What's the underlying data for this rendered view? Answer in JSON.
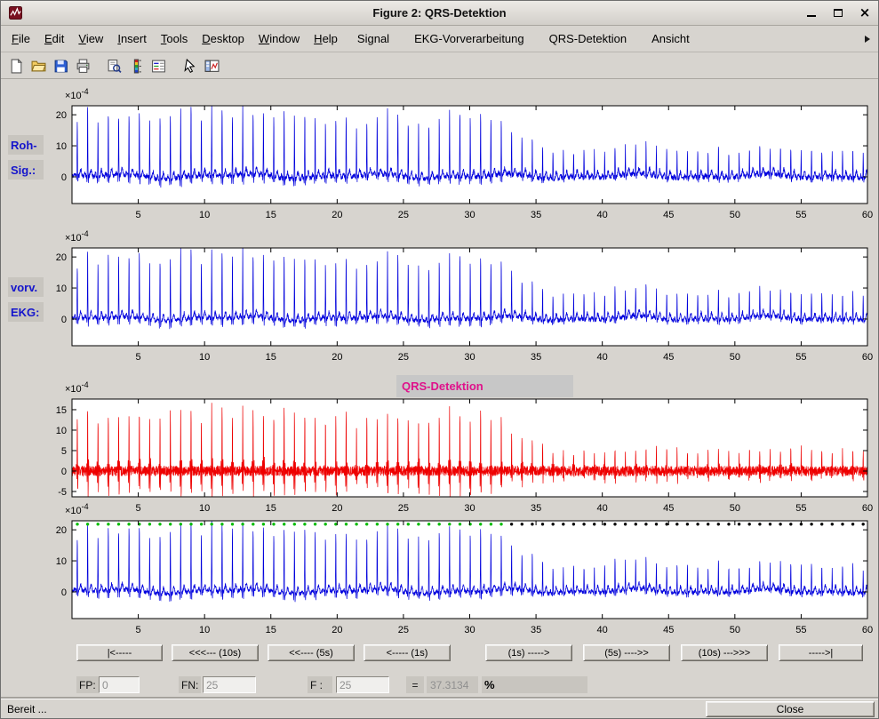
{
  "window": {
    "title": "Figure 2: QRS-Detektion",
    "close_glyph": "×"
  },
  "menu": {
    "items": [
      {
        "label": "File",
        "underline": 0,
        "custom": false
      },
      {
        "label": "Edit",
        "underline": 0,
        "custom": false
      },
      {
        "label": "View",
        "underline": 0,
        "custom": false
      },
      {
        "label": "Insert",
        "underline": 0,
        "custom": false
      },
      {
        "label": "Tools",
        "underline": 0,
        "custom": false
      },
      {
        "label": "Desktop",
        "underline": 0,
        "custom": false
      },
      {
        "label": "Window",
        "underline": 0,
        "custom": false
      },
      {
        "label": "Help",
        "underline": 0,
        "custom": false
      },
      {
        "label": "Signal",
        "underline": -1,
        "custom": true
      },
      {
        "label": "EKG-Vorverarbeitung",
        "underline": -1,
        "custom": true
      },
      {
        "label": "QRS-Detektion",
        "underline": -1,
        "custom": true
      },
      {
        "label": "Ansicht",
        "underline": -1,
        "custom": true
      }
    ]
  },
  "toolbar": {
    "buttons": [
      {
        "name": "new-figure",
        "icon": "new-document-icon"
      },
      {
        "name": "open-file",
        "icon": "open-folder-icon"
      },
      {
        "name": "save-figure",
        "icon": "save-floppy-icon"
      },
      {
        "name": "print-figure",
        "icon": "printer-icon"
      },
      {
        "separator": true
      },
      {
        "name": "print-preview",
        "icon": "print-preview-icon"
      },
      {
        "name": "insert-colorbar",
        "icon": "colorbar-icon"
      },
      {
        "name": "insert-legend",
        "icon": "legend-icon"
      },
      {
        "separator": true
      },
      {
        "name": "edit-plot",
        "icon": "pointer-arrow-icon"
      },
      {
        "name": "plot-tools",
        "icon": "plot-tools-icon"
      }
    ]
  },
  "axis_labels": {
    "plot1": [
      "Roh-",
      "Sig.:"
    ],
    "plot2": [
      "vorv.",
      "EKG:"
    ]
  },
  "nav": {
    "buttons": [
      "|<-----",
      "<<<--- (10s)",
      "<<---- (5s)",
      "<----- (1s)",
      "(1s) ----->",
      "(5s) ---->>",
      "(10s) --->>>",
      "----->|"
    ]
  },
  "stats": {
    "fp_label": "FP:",
    "fp_value": "0",
    "fn_label": "FN:",
    "fn_value": "25",
    "f_label": "F :",
    "f_value": "25",
    "equals_sign": "=",
    "f_measure_value": "37.3134",
    "percent_label": "%"
  },
  "statusbar": {
    "status_text": "Bereit ...",
    "close_button_label": "Close"
  },
  "colors": {
    "window_chrome": "#d7d4cf",
    "signal_blue": "#0000dd",
    "signal_red": "#ee0000",
    "qrs_title_magenta": "#df128b",
    "axis_label_blue": "#1515cc",
    "detected_marker_green": "#00bb00",
    "missed_marker_black": "#000000"
  },
  "chart_data": [
    {
      "id": "raw-signal",
      "type": "line",
      "title": "",
      "description": "Raw ECG (Roh-Signal), 60 s window. QRS spikes roughly every 0.78 s; spike amplitude about 21-22 (x10^-4 units) until ~31 s, declining to ~10 after ~36 s; noisy baseline near 0.",
      "color": "#0000dd",
      "xlim": [
        0,
        60
      ],
      "ylim": [
        -8.6,
        22.9
      ],
      "xticks": [
        5,
        10,
        15,
        20,
        25,
        30,
        35,
        40,
        45,
        50,
        55,
        60
      ],
      "yticks": [
        0,
        10,
        20
      ],
      "exp_label": "×10",
      "exp_power": "-4",
      "signal": "ecg",
      "first_beat_s": 0.4,
      "beat_interval_s": 0.78,
      "amp_high": 21.5,
      "amp_low": 10.0,
      "transition_start_s": 31,
      "transition_end_s": 36,
      "noise": 0.8,
      "seed": 11
    },
    {
      "id": "preprocessed-ecg",
      "type": "line",
      "title": "",
      "description": "Preprocessed ECG (vorverarbeitetes EKG), same beats and amplitude envelope as raw signal, slightly less noise.",
      "color": "#0000dd",
      "xlim": [
        0,
        60
      ],
      "ylim": [
        -8.6,
        22.9
      ],
      "xticks": [
        5,
        10,
        15,
        20,
        25,
        30,
        35,
        40,
        45,
        50,
        55,
        60
      ],
      "yticks": [
        0,
        10,
        20
      ],
      "exp_label": "×10",
      "exp_power": "-4",
      "signal": "ecg",
      "first_beat_s": 0.4,
      "beat_interval_s": 0.78,
      "amp_high": 21.5,
      "amp_low": 10.0,
      "transition_start_s": 31,
      "transition_end_s": 36,
      "noise": 0.7,
      "seed": 22
    },
    {
      "id": "qrs-detection-function",
      "type": "line",
      "title": "QRS-Detektion",
      "description": "QRS detection feature signal (red), oscillating bursts at each beat: positive peaks ~15-16, negative lobes ~ -6 (x10^-4 units) until ~31 s, shrinking to ~6 afterwards; dense noise band around 0.",
      "color": "#ee0000",
      "xlim": [
        0,
        60
      ],
      "ylim": [
        -6.3,
        17.6
      ],
      "xticks": [
        5,
        10,
        15,
        20,
        25,
        30,
        35,
        40,
        45,
        50,
        55,
        60
      ],
      "yticks": [
        -5,
        0,
        5,
        10,
        15
      ],
      "exp_label": "×10",
      "exp_power": "-4",
      "signal": "qrs",
      "first_beat_s": 0.4,
      "beat_interval_s": 0.78,
      "amp_high": 15.5,
      "amp_low": 6.0,
      "transition_start_s": 31,
      "transition_end_s": 36,
      "noise": 1.25,
      "seed": 33
    },
    {
      "id": "detection-result",
      "type": "line",
      "title": "",
      "description": "Preprocessed ECG (blue) with beat markers along the top: green dots = detected QRS (t < ~33 s), black dots = undetected beats (t > ~33 s).",
      "color": "#0000dd",
      "xlim": [
        0,
        60
      ],
      "ylim": [
        -8.6,
        22.9
      ],
      "xticks": [
        5,
        10,
        15,
        20,
        25,
        30,
        35,
        40,
        45,
        50,
        55,
        60
      ],
      "yticks": [
        0,
        10,
        20
      ],
      "exp_label": "×10",
      "exp_power": "-4",
      "signal": "ecg",
      "first_beat_s": 0.4,
      "beat_interval_s": 0.78,
      "amp_high": 21.5,
      "amp_low": 10.0,
      "transition_start_s": 31,
      "transition_end_s": 36,
      "noise": 0.7,
      "seed": 44,
      "markers": {
        "y": 21.8,
        "green_until_s": 33,
        "detected_color": "#00bb00",
        "missed_color": "#000000"
      }
    }
  ]
}
